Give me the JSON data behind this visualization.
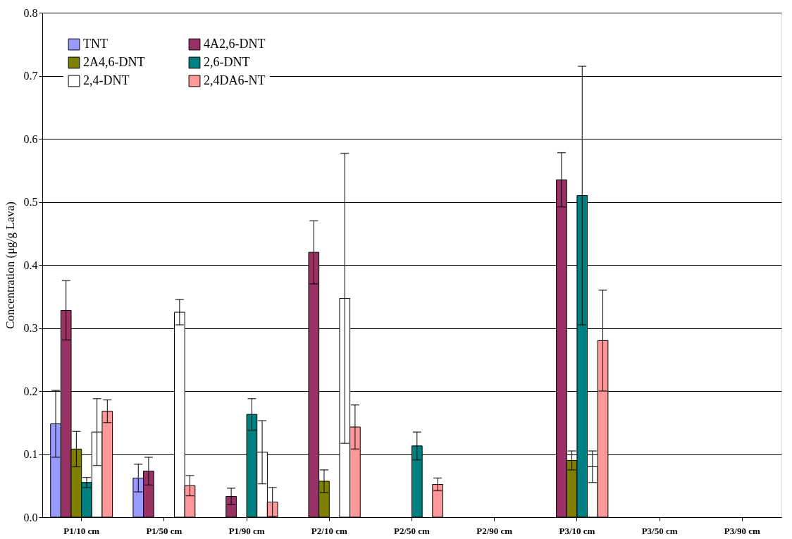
{
  "chart_data": {
    "type": "bar",
    "ylabel": "Concentration (μg/g Lava)",
    "categories": [
      "P1/10 cm",
      "P1/50 cm",
      "P1/90 cm",
      "P2/10 cm",
      "P2/50 cm",
      "P2/90 cm",
      "P3/10 cm",
      "P3/50 cm",
      "P3/90 cm"
    ],
    "series": [
      {
        "name": "TNT",
        "color": "#9999ff",
        "values": [
          0.148,
          0.062,
          null,
          null,
          null,
          null,
          null,
          null,
          null
        ],
        "errors": [
          0.053,
          0.022,
          null,
          null,
          null,
          null,
          null,
          null,
          null
        ]
      },
      {
        "name": "4A2,6-DNT",
        "color": "#993366",
        "values": [
          0.328,
          0.073,
          0.033,
          0.42,
          null,
          null,
          0.535,
          null,
          null
        ],
        "errors": [
          0.047,
          0.022,
          0.013,
          0.05,
          null,
          null,
          0.043,
          null,
          null
        ]
      },
      {
        "name": "2A4,6-DNT",
        "color": "#808000",
        "values": [
          0.108,
          null,
          null,
          0.057,
          null,
          null,
          0.09,
          null,
          null
        ],
        "errors": [
          0.028,
          null,
          null,
          0.018,
          null,
          null,
          0.015,
          null,
          null
        ]
      },
      {
        "name": "2,6-DNT",
        "color": "#008080",
        "values": [
          0.055,
          null,
          0.163,
          null,
          0.113,
          null,
          0.51,
          null,
          null
        ],
        "errors": [
          0.008,
          null,
          0.025,
          null,
          0.022,
          null,
          0.205,
          null,
          null
        ]
      },
      {
        "name": "2,4-DNT",
        "color": "#ffffff",
        "values": [
          0.135,
          0.325,
          0.103,
          0.347,
          null,
          null,
          0.08,
          null,
          null
        ],
        "errors": [
          0.053,
          0.02,
          0.05,
          0.23,
          null,
          null,
          0.025,
          null,
          null
        ]
      },
      {
        "name": "2,4DA6-NT",
        "color": "#ff9999",
        "values": [
          0.168,
          0.05,
          0.024,
          0.143,
          0.052,
          null,
          0.28,
          null,
          null
        ],
        "errors": [
          0.018,
          0.016,
          0.023,
          0.035,
          0.01,
          null,
          0.08,
          null,
          null
        ]
      }
    ],
    "ylim": [
      0,
      0.8
    ],
    "yticks": [
      {
        "value": 0,
        "label": "0.0"
      },
      0.1,
      0.2,
      0.3,
      0.4,
      0.5,
      0.6,
      0.7,
      0.8
    ],
    "grid": "y",
    "legend": "top left"
  }
}
